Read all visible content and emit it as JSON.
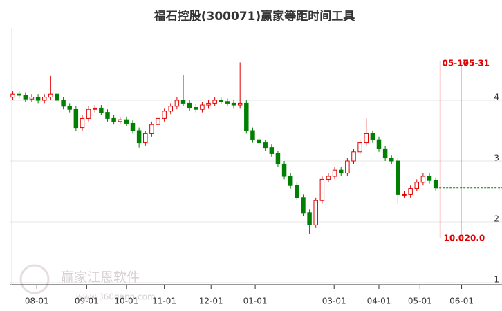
{
  "chart_data": {
    "type": "candlestick",
    "title": "福石控股(300071)赢家等距时间工具",
    "watermark": "赢家江恩软件",
    "watermark_url": "www.360gann.com",
    "up_color": "#e00000",
    "down_color": "#008000",
    "grid": true,
    "ylim": [
      1,
      5
    ],
    "yticks": [
      1,
      2,
      3,
      4
    ],
    "xlim": [
      0,
      78
    ],
    "xticks": [
      {
        "value": 4.3,
        "label": "08-01"
      },
      {
        "value": 12.2,
        "label": "09-01"
      },
      {
        "value": 18.5,
        "label": "10-01"
      },
      {
        "value": 24.5,
        "label": "11-01"
      },
      {
        "value": 31.9,
        "label": "12-01"
      },
      {
        "value": 38.9,
        "label": "01-01"
      },
      {
        "value": 51.4,
        "label": "03-01"
      },
      {
        "value": 58.5,
        "label": "04-01"
      },
      {
        "value": 65.0,
        "label": "05-01"
      },
      {
        "value": 71.6,
        "label": "06-01"
      }
    ],
    "open": [
      4.05,
      4.1,
      4.08,
      4.02,
      4.05,
      4.0,
      4.05,
      4.1,
      4.0,
      3.9,
      3.85,
      3.55,
      3.7,
      3.85,
      3.87,
      3.8,
      3.7,
      3.65,
      3.68,
      3.62,
      3.5,
      3.3,
      3.45,
      3.6,
      3.7,
      3.82,
      3.9,
      4.0,
      3.95,
      3.88,
      3.85,
      3.92,
      3.95,
      4.0,
      3.98,
      3.95,
      3.92,
      3.95,
      3.5,
      3.35,
      3.3,
      3.22,
      3.12,
      2.95,
      2.75,
      2.6,
      2.4,
      2.15,
      1.95,
      2.35,
      2.7,
      2.75,
      2.85,
      2.8,
      3.0,
      3.15,
      3.3,
      3.45,
      3.35,
      3.2,
      3.05,
      3.0,
      2.45,
      2.45,
      2.55,
      2.65,
      2.75,
      2.68
    ],
    "high": [
      4.15,
      4.15,
      4.13,
      4.1,
      4.1,
      4.1,
      4.4,
      4.15,
      4.05,
      3.95,
      3.9,
      3.75,
      3.9,
      3.92,
      3.92,
      3.85,
      3.75,
      3.73,
      3.73,
      3.67,
      3.55,
      3.5,
      3.65,
      3.75,
      3.87,
      3.95,
      4.05,
      4.42,
      4.0,
      3.93,
      3.97,
      4.0,
      4.05,
      4.05,
      4.03,
      4.0,
      4.62,
      4.0,
      3.55,
      3.4,
      3.35,
      3.27,
      3.17,
      3.0,
      2.8,
      2.65,
      2.45,
      2.2,
      2.4,
      2.75,
      2.8,
      2.9,
      2.9,
      3.05,
      3.2,
      3.35,
      3.7,
      3.5,
      3.4,
      3.25,
      3.1,
      3.05,
      2.5,
      2.6,
      2.7,
      2.8,
      2.8,
      2.73
    ],
    "low": [
      4.0,
      4.03,
      3.97,
      3.97,
      3.95,
      3.95,
      4.0,
      3.95,
      3.85,
      3.8,
      3.5,
      3.5,
      3.65,
      3.8,
      3.75,
      3.65,
      3.6,
      3.6,
      3.57,
      3.45,
      3.22,
      3.25,
      3.4,
      3.55,
      3.65,
      3.77,
      3.85,
      3.9,
      3.83,
      3.8,
      3.8,
      3.87,
      3.9,
      3.93,
      3.9,
      3.87,
      3.87,
      3.45,
      3.3,
      3.25,
      3.17,
      3.07,
      2.9,
      2.7,
      2.55,
      2.35,
      2.1,
      1.8,
      1.9,
      2.3,
      2.65,
      2.7,
      2.75,
      2.75,
      2.95,
      3.1,
      3.25,
      3.3,
      3.15,
      3.0,
      2.95,
      2.3,
      2.4,
      2.4,
      2.5,
      2.6,
      2.63,
      2.51
    ],
    "close": [
      4.1,
      4.08,
      4.02,
      4.05,
      4.0,
      4.05,
      4.1,
      4.0,
      3.9,
      3.85,
      3.55,
      3.7,
      3.85,
      3.87,
      3.8,
      3.7,
      3.65,
      3.68,
      3.62,
      3.5,
      3.3,
      3.45,
      3.6,
      3.7,
      3.82,
      3.9,
      4.0,
      3.95,
      3.88,
      3.85,
      3.92,
      3.95,
      4.0,
      3.98,
      3.95,
      3.92,
      3.95,
      3.5,
      3.35,
      3.3,
      3.22,
      3.12,
      2.95,
      2.75,
      2.6,
      2.4,
      2.15,
      1.95,
      2.35,
      2.7,
      2.75,
      2.85,
      2.8,
      3.0,
      3.15,
      3.3,
      3.45,
      3.35,
      3.2,
      3.05,
      3.0,
      2.45,
      2.45,
      2.55,
      2.65,
      2.75,
      2.68,
      2.56
    ],
    "reference_line": 2.56,
    "time_lines": [
      {
        "x": 68.2,
        "label": "05-17",
        "bottom_label": "10.0"
      },
      {
        "x": 71.5,
        "label": "05-31",
        "bottom_label": "20.0"
      }
    ]
  }
}
